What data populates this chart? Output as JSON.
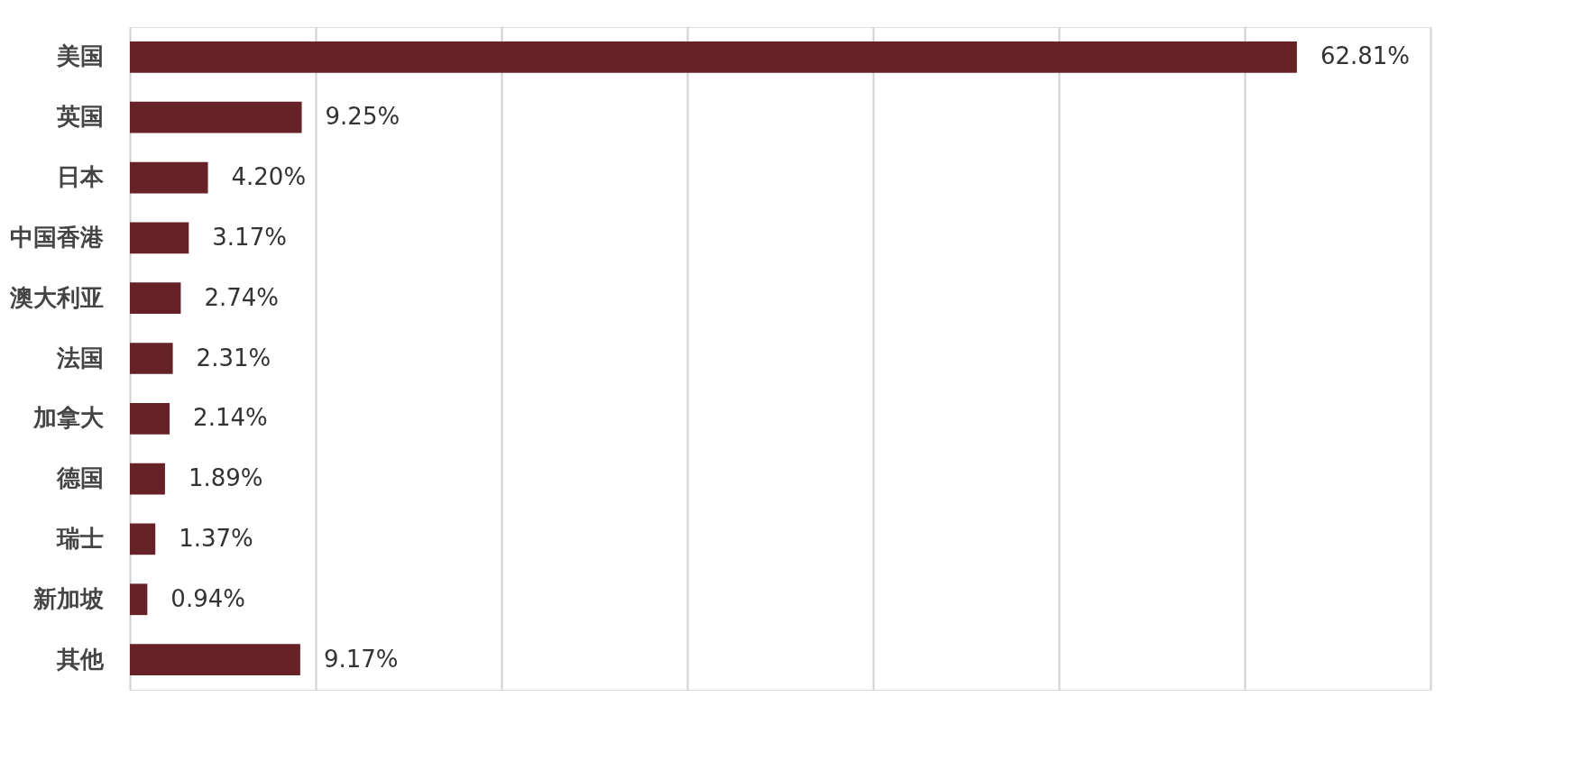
{
  "chart_data": {
    "type": "bar",
    "orientation": "horizontal",
    "categories": [
      "美国",
      "英国",
      "日本",
      "中国香港",
      "澳大利亚",
      "法国",
      "加拿大",
      "德国",
      "瑞士",
      "新加坡",
      "其他"
    ],
    "values": [
      62.81,
      9.25,
      4.2,
      3.17,
      2.74,
      2.31,
      2.14,
      1.89,
      1.37,
      0.94,
      9.17
    ],
    "value_labels": [
      "62.81%",
      "9.25%",
      "4.20%",
      "3.17%",
      "2.74%",
      "2.31%",
      "2.14%",
      "1.89%",
      "1.37%",
      "0.94%",
      "9.17%"
    ],
    "color": "#662226",
    "xlim": [
      0,
      70
    ],
    "xticks": [
      {
        "value": 0,
        "label": null
      },
      {
        "value": 10,
        "label": null
      },
      {
        "value": 20,
        "label": null
      },
      {
        "value": 30,
        "label": null
      },
      {
        "value": 40,
        "label": null
      },
      {
        "value": 50,
        "label": null
      },
      {
        "value": 60,
        "label": null
      },
      {
        "value": 70,
        "label": null
      }
    ],
    "grid": "x",
    "tick_labels": "y"
  }
}
